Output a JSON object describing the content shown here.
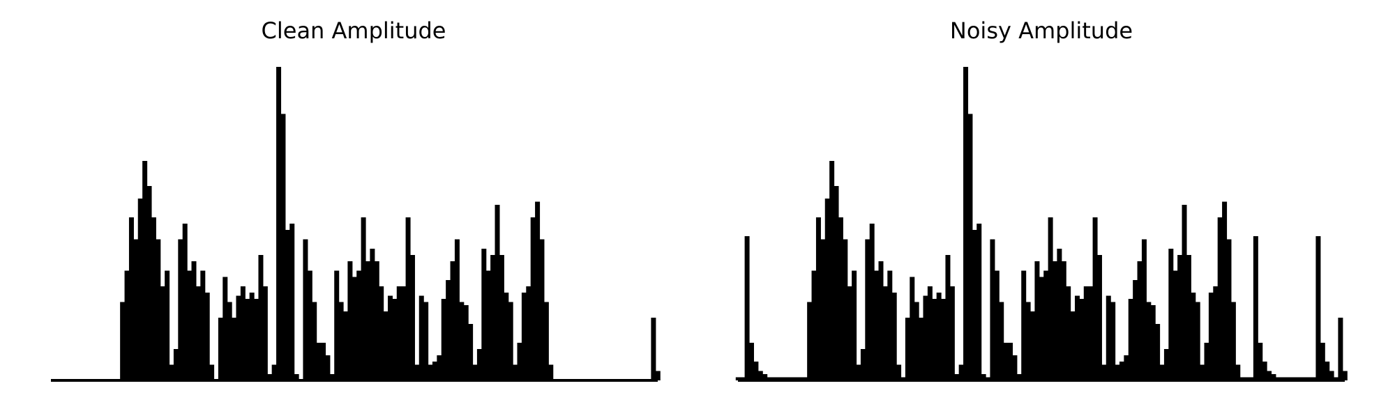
{
  "chart_data": [
    {
      "type": "area",
      "title": "Clean Amplitude",
      "color": "#000000",
      "ylim": [
        0,
        1
      ],
      "values": [
        0,
        0,
        0,
        0,
        0,
        0,
        0,
        0,
        0,
        0,
        0,
        0,
        0,
        0,
        0,
        0,
        0.25,
        0.35,
        0.52,
        0.45,
        0.58,
        0.7,
        0.62,
        0.52,
        0.45,
        0.3,
        0.35,
        0.05,
        0.1,
        0.45,
        0.5,
        0.35,
        0.38,
        0.3,
        0.35,
        0.28,
        0.05,
        0,
        0.2,
        0.33,
        0.25,
        0.2,
        0.27,
        0.3,
        0.26,
        0.28,
        0.26,
        0.4,
        0.3,
        0.02,
        0.05,
        1.0,
        0.85,
        0.48,
        0.5,
        0.02,
        0,
        0.45,
        0.35,
        0.25,
        0.12,
        0.12,
        0.08,
        0.02,
        0.35,
        0.25,
        0.22,
        0.38,
        0.33,
        0.35,
        0.52,
        0.38,
        0.42,
        0.38,
        0.3,
        0.22,
        0.27,
        0.26,
        0.3,
        0.3,
        0.52,
        0.4,
        0.05,
        0.27,
        0.25,
        0.05,
        0.06,
        0.08,
        0.26,
        0.32,
        0.38,
        0.45,
        0.25,
        0.24,
        0.18,
        0.05,
        0.1,
        0.42,
        0.35,
        0.4,
        0.56,
        0.4,
        0.28,
        0.25,
        0.05,
        0.12,
        0.28,
        0.3,
        0.52,
        0.57,
        0.45,
        0.25,
        0.05,
        0,
        0,
        0,
        0,
        0,
        0,
        0,
        0,
        0,
        0,
        0,
        0,
        0,
        0,
        0,
        0,
        0,
        0,
        0,
        0,
        0,
        0,
        0.2,
        0.03
      ]
    },
    {
      "type": "area",
      "title": "Noisy Amplitude",
      "color": "#000000",
      "ylim": [
        0,
        1
      ],
      "values": [
        0.01,
        0.01,
        0.46,
        0.12,
        0.06,
        0.03,
        0.02,
        0.01,
        0.01,
        0.01,
        0.01,
        0.01,
        0.01,
        0.01,
        0.01,
        0.01,
        0.25,
        0.35,
        0.52,
        0.45,
        0.58,
        0.7,
        0.62,
        0.52,
        0.45,
        0.3,
        0.35,
        0.05,
        0.1,
        0.45,
        0.5,
        0.35,
        0.38,
        0.3,
        0.35,
        0.28,
        0.05,
        0.01,
        0.2,
        0.33,
        0.25,
        0.2,
        0.27,
        0.3,
        0.26,
        0.28,
        0.26,
        0.4,
        0.3,
        0.02,
        0.05,
        1.0,
        0.85,
        0.48,
        0.5,
        0.02,
        0.01,
        0.45,
        0.35,
        0.25,
        0.12,
        0.12,
        0.08,
        0.02,
        0.35,
        0.25,
        0.22,
        0.38,
        0.33,
        0.35,
        0.52,
        0.38,
        0.42,
        0.38,
        0.3,
        0.22,
        0.27,
        0.26,
        0.3,
        0.3,
        0.52,
        0.4,
        0.05,
        0.27,
        0.25,
        0.05,
        0.06,
        0.08,
        0.26,
        0.32,
        0.38,
        0.45,
        0.25,
        0.24,
        0.18,
        0.05,
        0.1,
        0.42,
        0.35,
        0.4,
        0.56,
        0.4,
        0.28,
        0.25,
        0.05,
        0.12,
        0.28,
        0.3,
        0.52,
        0.57,
        0.45,
        0.25,
        0.05,
        0.01,
        0.01,
        0.01,
        0.46,
        0.12,
        0.06,
        0.03,
        0.02,
        0.01,
        0.01,
        0.01,
        0.01,
        0.01,
        0.01,
        0.01,
        0.01,
        0.01,
        0.46,
        0.12,
        0.06,
        0.03,
        0.01,
        0.2,
        0.03
      ]
    }
  ]
}
